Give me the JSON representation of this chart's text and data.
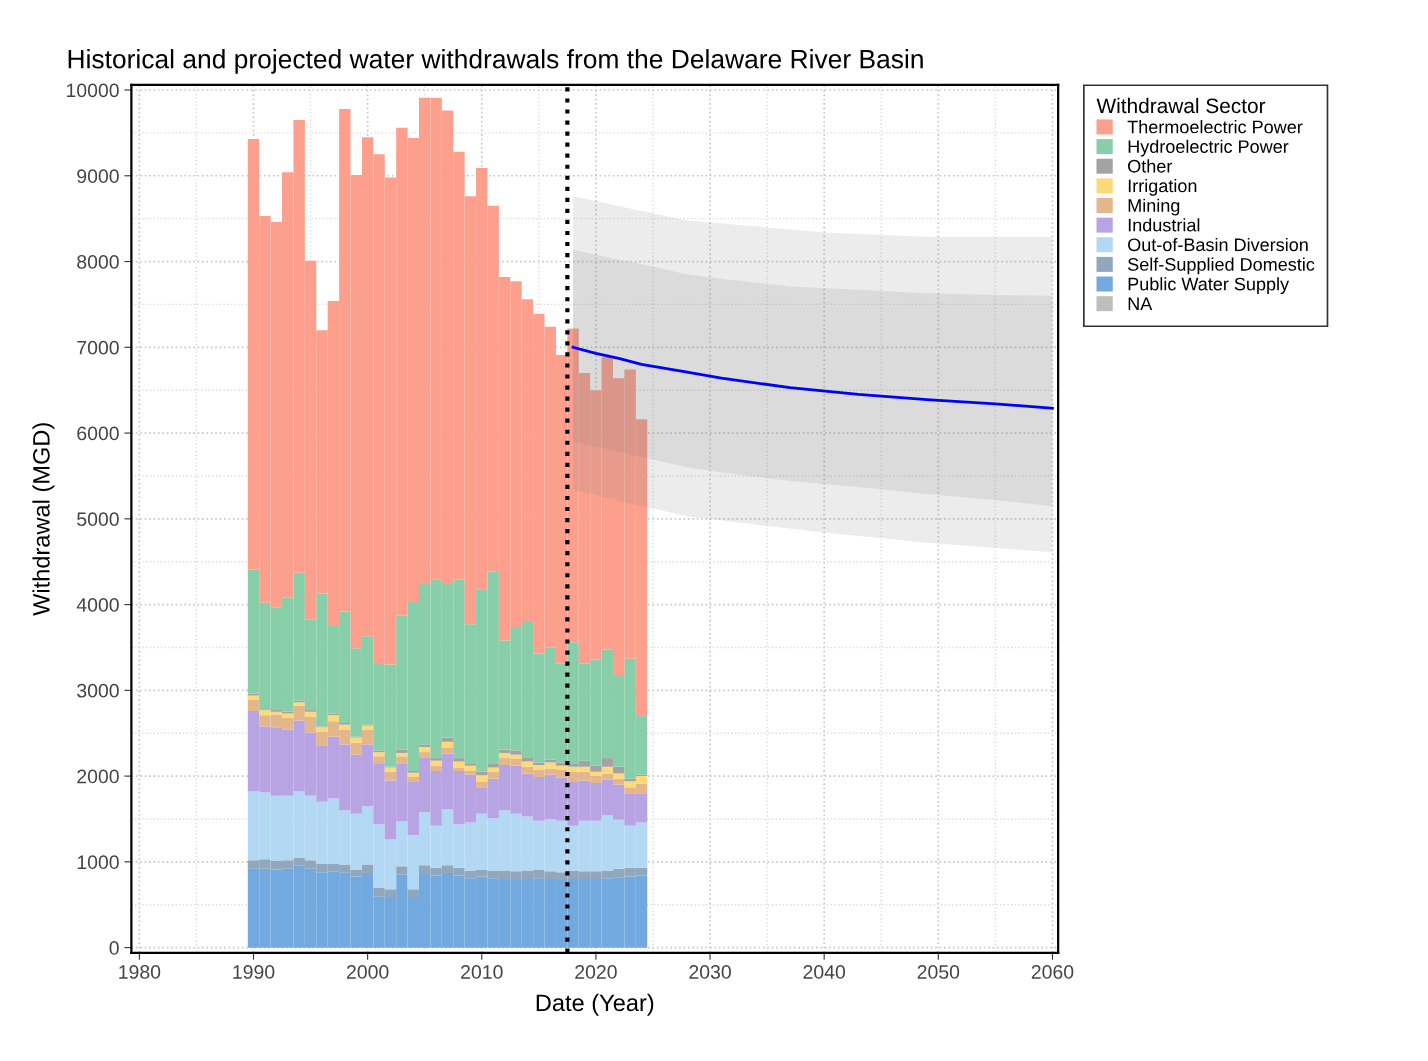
{
  "chart_data": {
    "type": "bar",
    "stacked": true,
    "title": "Historical and projected water withdrawals from the Delaware River Basin",
    "xlabel": "Date (Year)",
    "ylabel": "Withdrawal (MGD)",
    "legend_title": "Withdrawal Sector",
    "legend": "top right",
    "grid": true,
    "xlim": [
      1979.3,
      2060.5
    ],
    "ylim": [
      -60,
      10060
    ],
    "xticks": [
      1980,
      1990,
      2000,
      2010,
      2020,
      2030,
      2040,
      2050,
      2060
    ],
    "yticks": [
      0,
      1000,
      2000,
      3000,
      4000,
      5000,
      6000,
      7000,
      8000,
      9000,
      10000
    ],
    "x": [
      1990,
      1991,
      1992,
      1993,
      1994,
      1995,
      1996,
      1997,
      1998,
      1999,
      2000,
      2001,
      2002,
      2003,
      2004,
      2005,
      2006,
      2007,
      2008,
      2009,
      2010,
      2011,
      2012,
      2013,
      2014,
      2015,
      2016,
      2017,
      2018,
      2019,
      2020,
      2021,
      2022,
      2023,
      2024
    ],
    "ref_lines": [
      {
        "axis": "x",
        "value": 2017.5,
        "color": "#000000",
        "line_style": "dotted"
      }
    ],
    "series": [
      {
        "name": "NA",
        "color": "#bebebe",
        "values": [
          null,
          null,
          null,
          null,
          null,
          null,
          null,
          null,
          null,
          null,
          null,
          null,
          null,
          null,
          null,
          null,
          null,
          null,
          null,
          null,
          null,
          null,
          null,
          null,
          null,
          null,
          null,
          null,
          null,
          null,
          null,
          null,
          null,
          null,
          null
        ]
      },
      {
        "name": "Public Water Supply",
        "color": "#72aadf",
        "values": [
          920,
          920,
          910,
          920,
          960,
          920,
          880,
          890,
          880,
          830,
          870,
          600,
          590,
          850,
          590,
          860,
          840,
          870,
          840,
          810,
          830,
          810,
          790,
          790,
          800,
          810,
          800,
          790,
          800,
          800,
          800,
          810,
          820,
          830,
          840
        ]
      },
      {
        "name": "Self-Supplied Domestic",
        "color": "#91a7bb",
        "values": [
          100,
          110,
          100,
          100,
          90,
          100,
          100,
          90,
          90,
          80,
          100,
          100,
          90,
          100,
          90,
          100,
          90,
          90,
          90,
          90,
          80,
          90,
          110,
          100,
          100,
          100,
          90,
          90,
          100,
          90,
          90,
          90,
          100,
          100,
          90
        ]
      },
      {
        "name": "Out-of-Basin Diversion",
        "color": "#b3d8f3",
        "values": [
          800,
          780,
          760,
          750,
          770,
          750,
          720,
          760,
          630,
          650,
          680,
          740,
          580,
          520,
          630,
          620,
          490,
          650,
          510,
          560,
          650,
          610,
          700,
          670,
          630,
          570,
          610,
          600,
          520,
          590,
          590,
          640,
          570,
          490,
          530
        ]
      },
      {
        "name": "Industrial",
        "color": "#b8a4e3",
        "values": [
          940,
          770,
          800,
          770,
          830,
          740,
          660,
          720,
          770,
          690,
          720,
          700,
          690,
          680,
          630,
          640,
          640,
          650,
          620,
          560,
          310,
          460,
          530,
          560,
          500,
          510,
          520,
          500,
          520,
          470,
          440,
          420,
          410,
          380,
          340
        ]
      },
      {
        "name": "Mining",
        "color": "#e3b68b",
        "values": [
          130,
          130,
          150,
          140,
          170,
          180,
          160,
          180,
          170,
          140,
          170,
          90,
          100,
          80,
          50,
          60,
          60,
          70,
          40,
          40,
          60,
          80,
          80,
          80,
          80,
          80,
          70,
          90,
          110,
          100,
          80,
          70,
          70,
          70,
          110
        ]
      },
      {
        "name": "Irrigation",
        "color": "#fdd97a",
        "values": [
          50,
          60,
          30,
          50,
          40,
          60,
          50,
          70,
          60,
          60,
          50,
          50,
          50,
          40,
          50,
          60,
          60,
          70,
          70,
          60,
          80,
          50,
          60,
          50,
          60,
          60,
          70,
          50,
          60,
          60,
          50,
          80,
          60,
          70,
          90
        ]
      },
      {
        "name": "Other",
        "color": "#a3a3a3",
        "values": [
          20,
          10,
          20,
          20,
          20,
          20,
          10,
          20,
          20,
          10,
          10,
          20,
          10,
          40,
          20,
          30,
          30,
          50,
          40,
          20,
          40,
          40,
          40,
          50,
          50,
          30,
          30,
          40,
          30,
          70,
          70,
          100,
          80,
          30,
          20
        ]
      },
      {
        "name": "Hydroelectric Power",
        "color": "#88cfa9",
        "values": [
          1450,
          1240,
          1200,
          1330,
          1490,
          1060,
          1550,
          1020,
          1300,
          1030,
          1030,
          1020,
          1190,
          1560,
          1970,
          1870,
          2080,
          1790,
          2080,
          1630,
          2130,
          2250,
          1270,
          1440,
          1590,
          1270,
          1310,
          1150,
          1420,
          1130,
          1240,
          1270,
          1070,
          1400,
          680
        ]
      },
      {
        "name": "Thermoelectric Power",
        "color": "#fca08d",
        "values": [
          5020,
          4510,
          4490,
          4960,
          5280,
          4180,
          3070,
          3790,
          5860,
          5520,
          5820,
          5930,
          5680,
          5690,
          5410,
          5670,
          5620,
          5520,
          4990,
          4990,
          4910,
          4260,
          4240,
          4030,
          3750,
          3960,
          3740,
          3600,
          3660,
          3390,
          3140,
          3410,
          3460,
          3370,
          3460
        ]
      },
      {
        "type": "area",
        "color": "#808080",
        "x": [
          2018,
          2023,
          2028,
          2040,
          2049,
          2060
        ],
        "values": [
          null,
          null,
          null,
          null,
          null,
          null
        ],
        "lower": [
          5340,
          5180,
          5030,
          4840,
          4720,
          4610
        ],
        "upper": [
          8760,
          8620,
          8480,
          8340,
          8290,
          8290
        ]
      },
      {
        "type": "line",
        "color": "#0000ff",
        "x": [
          2018,
          2020,
          2022,
          2024,
          2028,
          2031,
          2037,
          2043,
          2049,
          2055,
          2060
        ],
        "values": [
          7000,
          6930,
          6870,
          6800,
          6710,
          6640,
          6530,
          6450,
          6390,
          6340,
          6290
        ],
        "lower": [
          5900,
          5840,
          5780,
          5720,
          5600,
          5540,
          5440,
          5370,
          5290,
          5220,
          5150
        ],
        "upper": [
          8140,
          8080,
          8020,
          7970,
          7850,
          7800,
          7710,
          7670,
          7630,
          7610,
          7600
        ]
      }
    ]
  }
}
